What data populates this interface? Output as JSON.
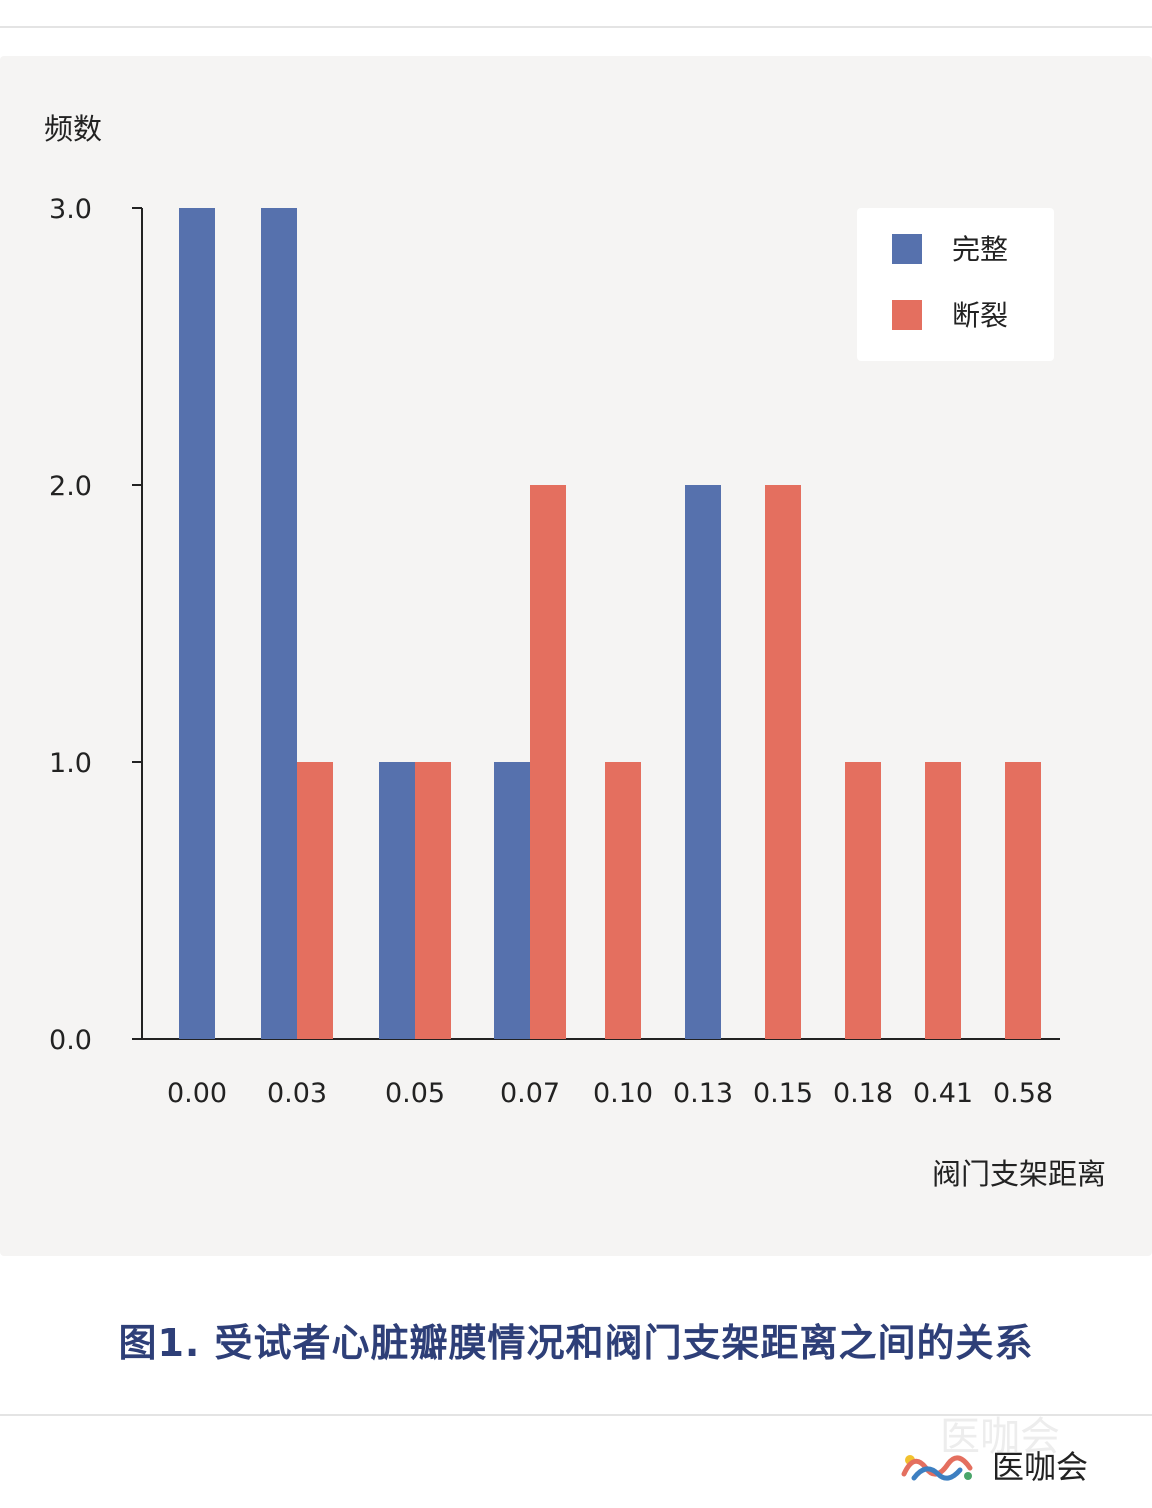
{
  "caption": "图1. 受试者心脏瓣膜情况和阀门支架距离之间的关系",
  "brand": {
    "name": "医咖会",
    "ghost": "医咖会"
  },
  "chart_data": {
    "type": "bar",
    "ylabel": "频数",
    "xlabel": "阀门支架距离",
    "ylim": [
      0,
      3
    ],
    "yticks": [
      "0.0",
      "1.0",
      "2.0",
      "3.0"
    ],
    "categories": [
      "0.00",
      "0.03",
      "0.05",
      "0.07",
      "0.10",
      "0.13",
      "0.15",
      "0.18",
      "0.41",
      "0.58"
    ],
    "series": [
      {
        "name": "完整",
        "color": "#5671ad",
        "values": [
          3,
          3,
          1,
          1,
          0,
          2,
          0,
          0,
          0,
          0
        ]
      },
      {
        "name": "断裂",
        "color": "#e46f5f",
        "values": [
          0,
          1,
          1,
          2,
          1,
          0,
          2,
          1,
          1,
          1
        ]
      }
    ],
    "legend_position": "top-right",
    "grid": false
  }
}
